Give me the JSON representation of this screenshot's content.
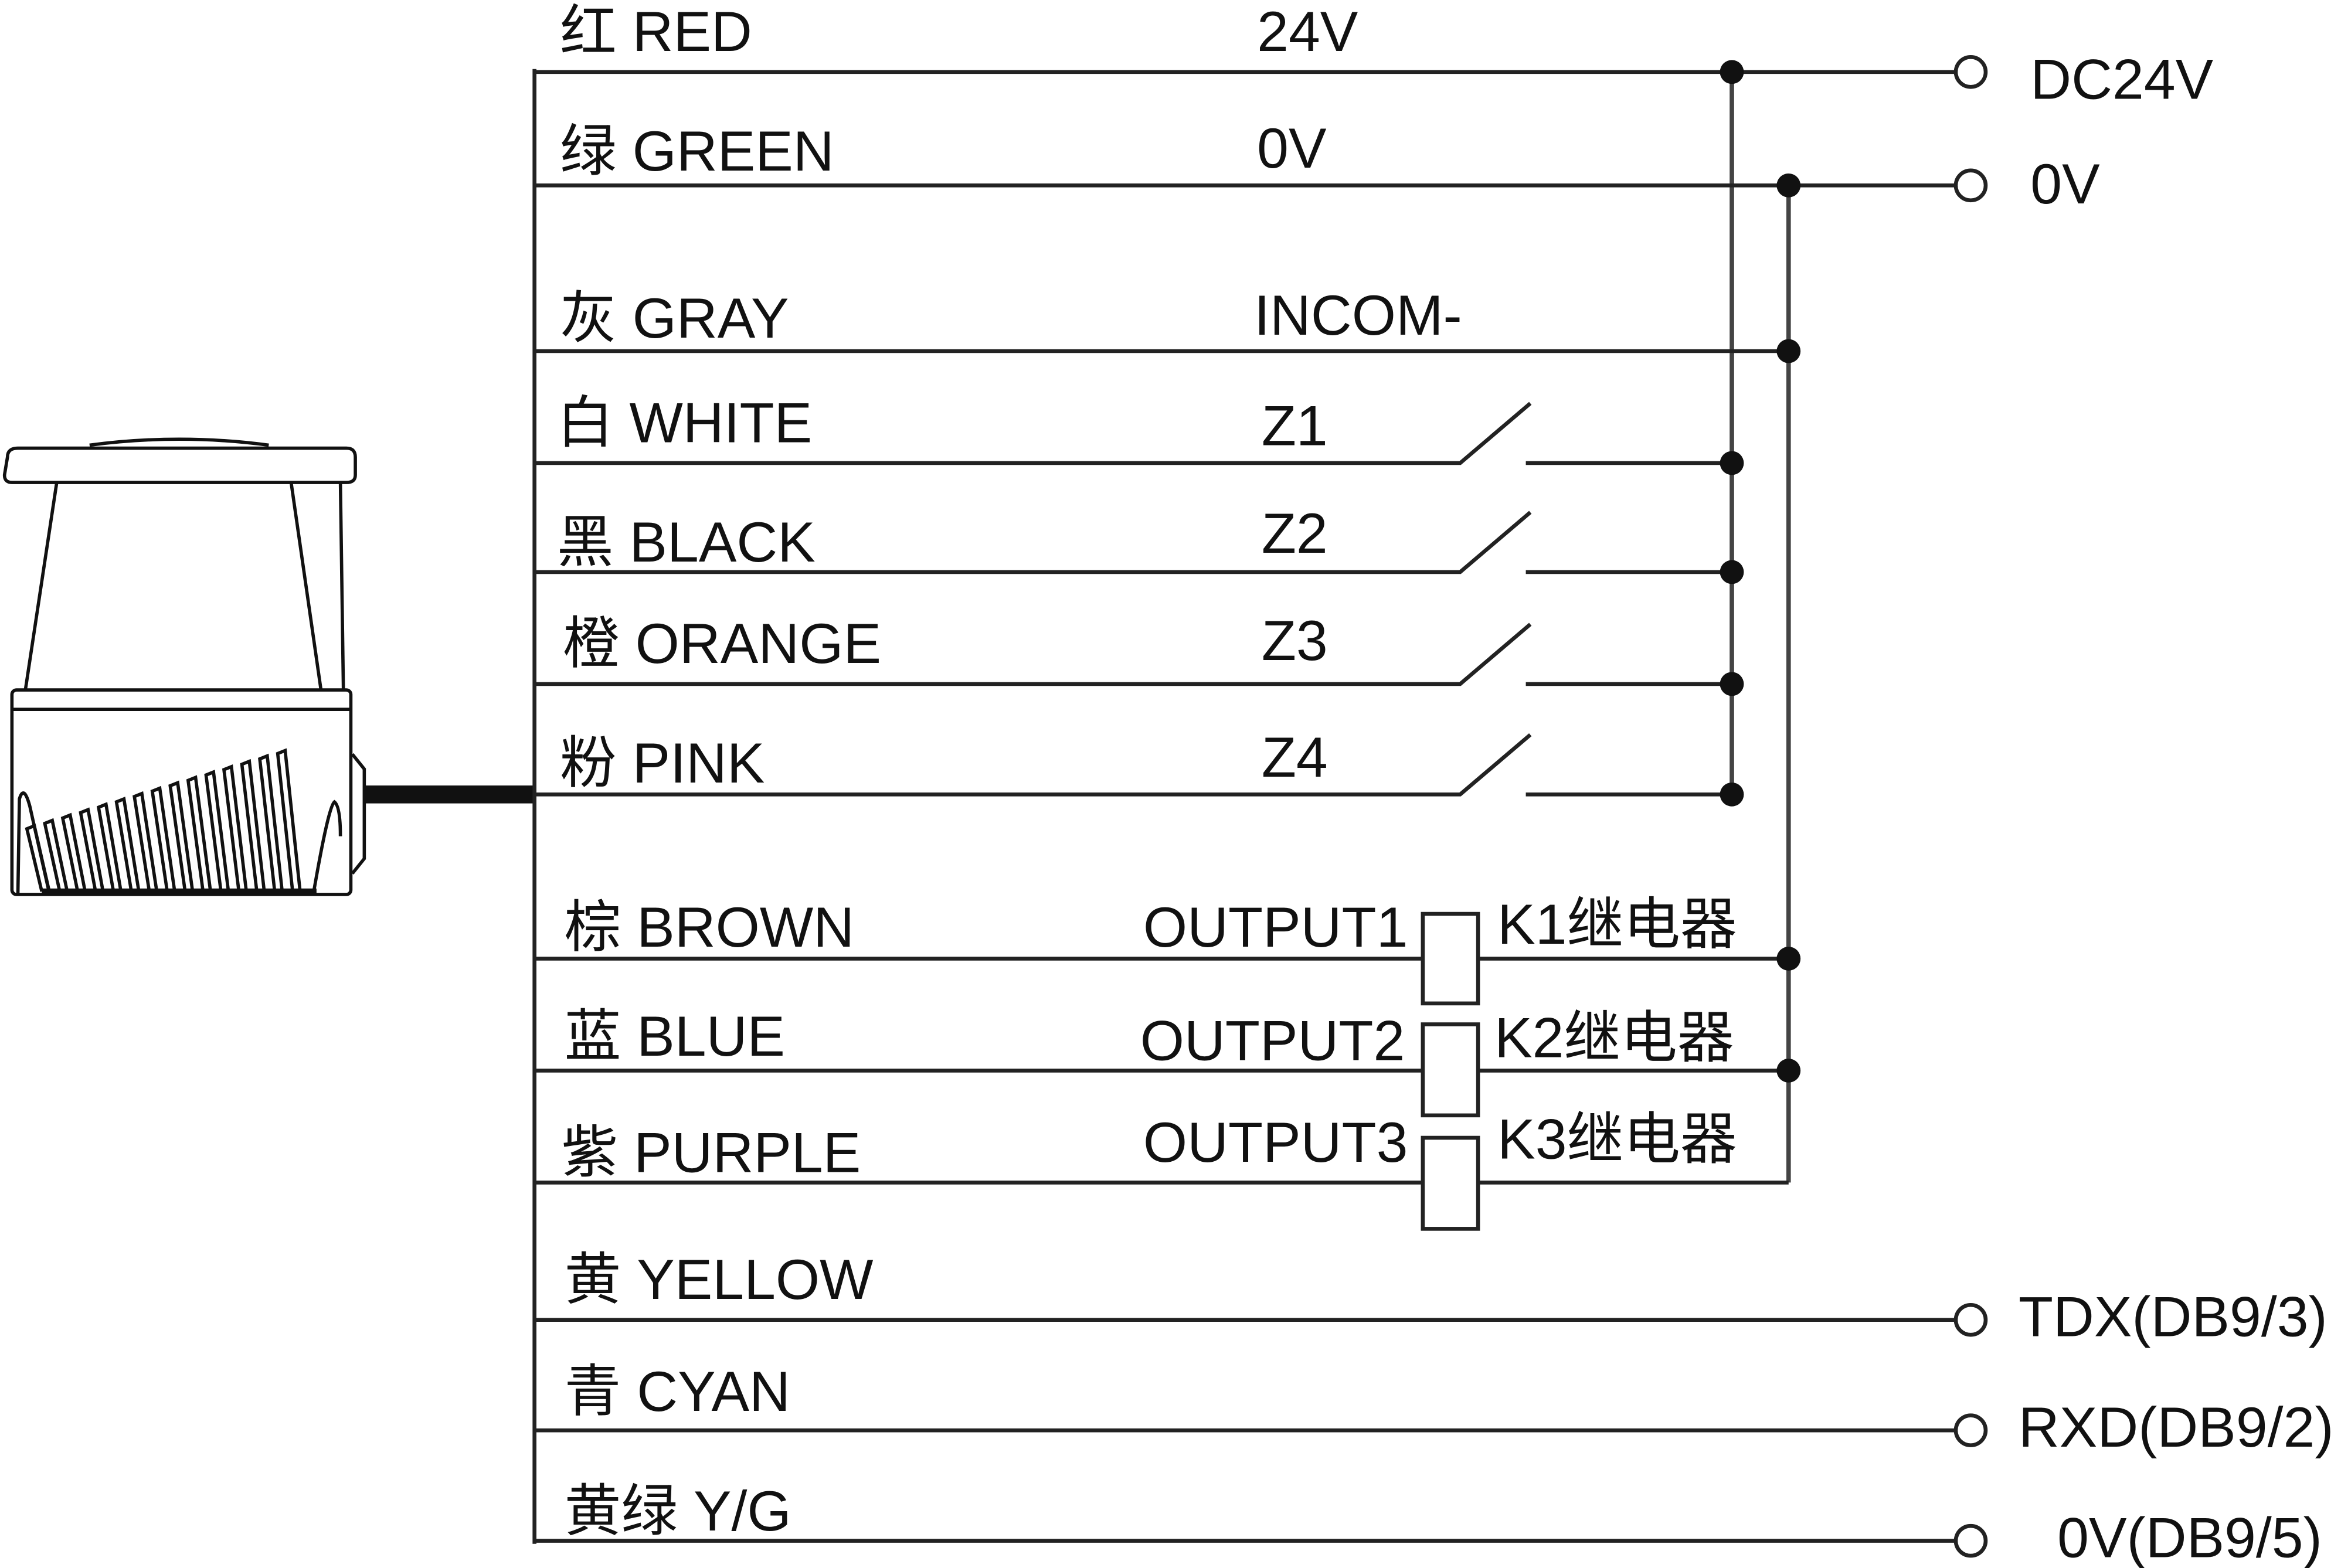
{
  "wires": [
    {
      "label": "红 RED",
      "signal": "24V"
    },
    {
      "label": "绿 GREEN",
      "signal": "0V"
    },
    {
      "label": "灰 GRAY",
      "signal": "INCOM-"
    },
    {
      "label": "白 WHITE",
      "signal": "Z1"
    },
    {
      "label": "黑 BLACK",
      "signal": "Z2"
    },
    {
      "label": "橙 ORANGE",
      "signal": "Z3"
    },
    {
      "label": "粉 PINK",
      "signal": "Z4"
    },
    {
      "label": "棕 BROWN",
      "signal": "OUTPUT1",
      "relay": "K1继电器"
    },
    {
      "label": "蓝 BLUE",
      "signal": "OUTPUT2",
      "relay": "K2继电器"
    },
    {
      "label": "紫 PURPLE",
      "signal": "OUTPUT3",
      "relay": "K3继电器"
    },
    {
      "label": "黄 YELLOW"
    },
    {
      "label": "青 CYAN"
    },
    {
      "label": "黄绿 Y/G"
    }
  ],
  "terminals": {
    "dc24v": "DC24V",
    "zero_v": "0V",
    "tdx": "TDX(DB9/3)",
    "rxd": "RXD(DB9/2)",
    "zero_v_db9": "0V(DB9/5)"
  },
  "icons": {
    "device": "laser-scanner-icon",
    "switch": "normally-open-switch-icon",
    "relay": "relay-coil-icon",
    "terminal": "terminal-circle-icon"
  }
}
